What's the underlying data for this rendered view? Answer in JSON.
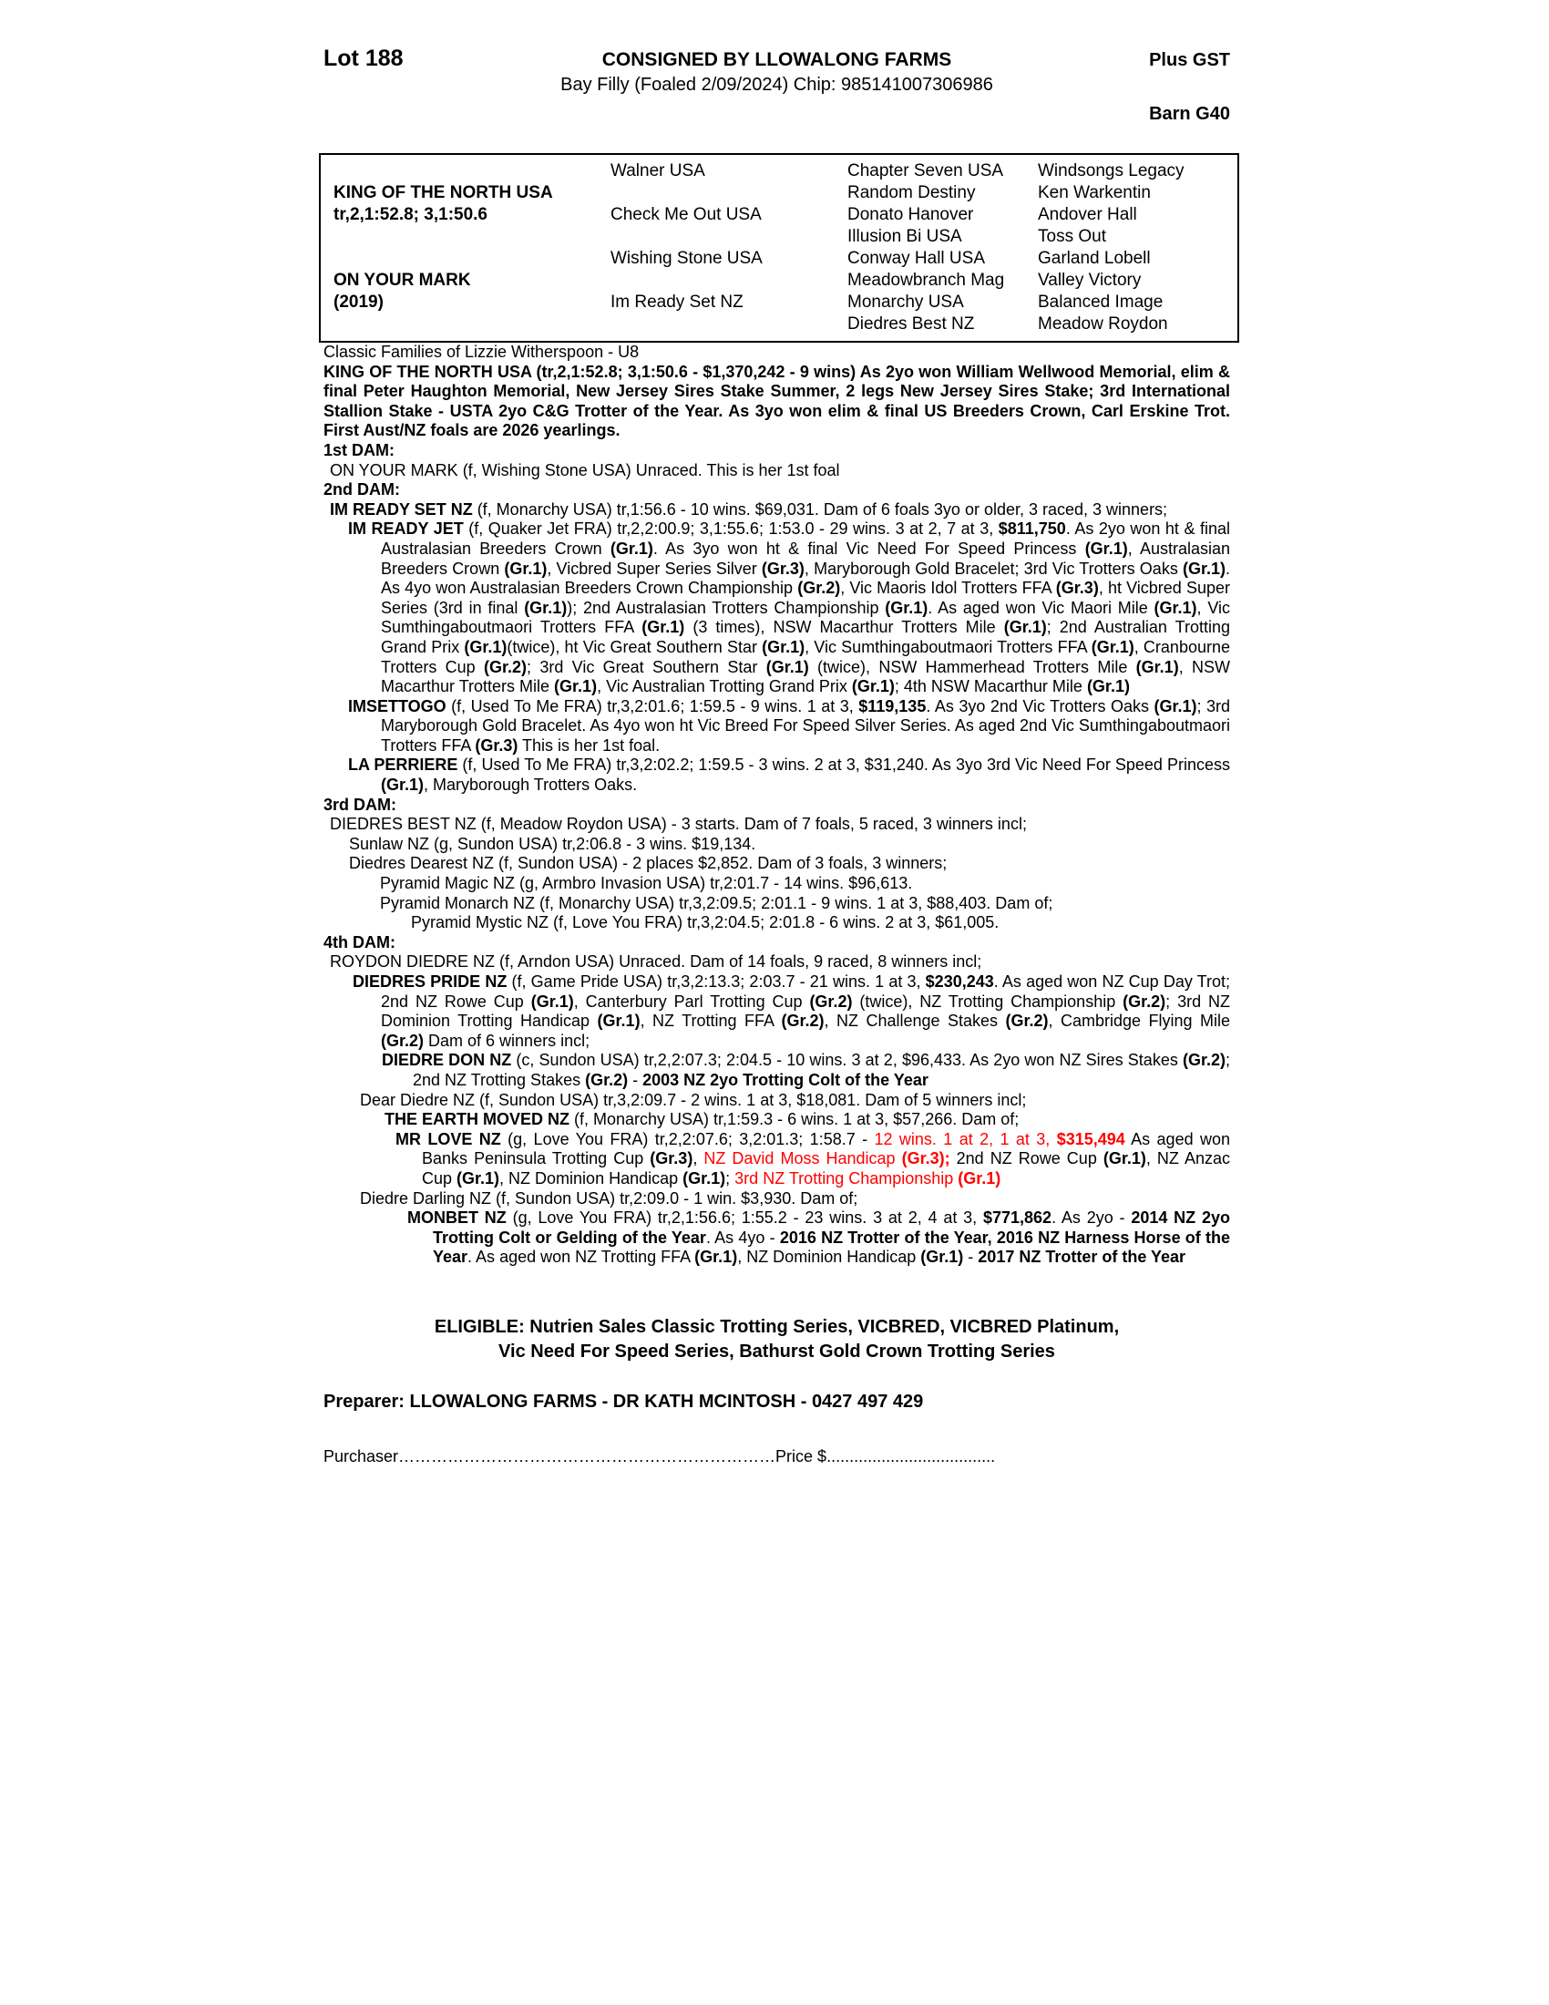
{
  "colors": {
    "red": "#ff0000",
    "black": "#000000"
  },
  "header": {
    "lot": "Lot 188",
    "consigned": "CONSIGNED BY LLOWALONG FARMS",
    "plus_gst": "Plus GST",
    "foal_desc": "Bay Filly (Foaled 2/09/2024) Chip: 985141007306986",
    "barn": "Barn G40"
  },
  "pedigree": {
    "sire": {
      "name": "KING OF THE NORTH USA",
      "record": "tr,2,1:52.8; 3,1:50.6"
    },
    "dam": {
      "name": "ON YOUR MARK",
      "year": "(2019)"
    },
    "gen2": [
      "Walner USA",
      "Check Me Out USA",
      "Wishing Stone USA",
      "Im Ready Set NZ"
    ],
    "gen3": [
      "Chapter Seven USA",
      "Random Destiny",
      "Donato Hanover",
      "Illusion Bi USA",
      "Conway Hall USA",
      "Meadowbranch Mag",
      "Monarchy USA",
      "Diedres Best NZ"
    ],
    "gen4": [
      "Windsongs Legacy",
      "Ken Warkentin",
      "Andover Hall",
      "Toss Out",
      "Garland Lobell",
      "Valley Victory",
      "Balanced Image",
      "Meadow Roydon"
    ]
  },
  "body": [
    {
      "name": "classic-families-line",
      "cls": "mt18",
      "runs": [
        [
          "Classic Families of Lizzie Witherspoon - U8",
          ""
        ]
      ]
    },
    {
      "name": "sire-summary",
      "cls": "mt16 jt",
      "runs": [
        [
          "KING OF THE NORTH USA (tr,2,1:52.8; 3,1:50.6 - $1,370,242 - 9 wins) As 2yo won William Wellwood Memorial, elim & final Peter Haughton Memorial, New Jersey Sires Stake Summer, 2 legs New Jersey Sires Stake; 3rd International Stallion Stake - USTA 2yo C&G Trotter of the Year. As 3yo won elim & final US Breeders Crown, Carl Erskine Trot. First Aust/NZ foals are 2026 yearlings.",
          "b"
        ]
      ]
    },
    {
      "name": "dam1-heading",
      "cls": "sec mt16",
      "runs": [
        [
          "1st DAM:",
          "b"
        ]
      ]
    },
    {
      "name": "dam1-entry",
      "cls": "e0",
      "runs": [
        [
          "ON YOUR MARK (f, Wishing Stone USA) Unraced. This is her 1st foal",
          ""
        ]
      ]
    },
    {
      "name": "dam2-heading",
      "cls": "sec mt10",
      "runs": [
        [
          "2nd DAM:",
          "b"
        ]
      ]
    },
    {
      "name": "dam2-entry",
      "cls": "e0h",
      "runs": [
        [
          "IM READY SET NZ",
          "b"
        ],
        [
          " (f, Monarchy USA) tr,1:56.6 - 10 wins. $69,031. Dam of 6 foals 3yo or older, 3 raced, 3 winners;",
          ""
        ]
      ]
    },
    {
      "name": "progeny-im-ready-jet",
      "cls": "e1 jt",
      "runs": [
        [
          "IM READY JET",
          "b"
        ],
        [
          " (f, Quaker Jet FRA) tr,2,2:00.9; 3,1:55.6; 1:53.0 - 29 wins. 3 at 2, 7 at 3, ",
          ""
        ],
        [
          "$811,750",
          "b"
        ],
        [
          ". As 2yo won ht & final Australasian Breeders Crown ",
          ""
        ],
        [
          "(Gr.1)",
          "b"
        ],
        [
          ". As 3yo won ht & final Vic Need For Speed Princess ",
          ""
        ],
        [
          "(Gr.1)",
          "b"
        ],
        [
          ", Australasian Breeders Crown ",
          ""
        ],
        [
          "(Gr.1)",
          "b"
        ],
        [
          ", Vicbred Super Series Silver ",
          ""
        ],
        [
          "(Gr.3)",
          "b"
        ],
        [
          ", Maryborough Gold Bracelet; 3rd Vic Trotters Oaks ",
          ""
        ],
        [
          "(Gr.1)",
          "b"
        ],
        [
          ". As 4yo won Australasian Breeders Crown Championship ",
          ""
        ],
        [
          "(Gr.2)",
          "b"
        ],
        [
          ", Vic Maoris Idol Trotters FFA ",
          ""
        ],
        [
          "(Gr.3)",
          "b"
        ],
        [
          ", ht Vicbred Super Series (3rd in final ",
          ""
        ],
        [
          "(Gr.1)",
          "b"
        ],
        [
          "); 2nd Australasian Trotters Championship ",
          ""
        ],
        [
          "(Gr.1)",
          "b"
        ],
        [
          ". As aged won Vic Maori Mile ",
          ""
        ],
        [
          "(Gr.1)",
          "b"
        ],
        [
          ", Vic Sumthingaboutmaori Trotters FFA ",
          ""
        ],
        [
          "(Gr.1)",
          "b"
        ],
        [
          " (3 times), NSW Macarthur Trotters Mile ",
          ""
        ],
        [
          "(Gr.1)",
          "b"
        ],
        [
          "; 2nd Australian Trotting Grand Prix ",
          ""
        ],
        [
          "(Gr.1)",
          "b"
        ],
        [
          "(twice), ht Vic Great Southern Star ",
          ""
        ],
        [
          "(Gr.1)",
          "b"
        ],
        [
          ", Vic Sumthingaboutmaori Trotters FFA ",
          ""
        ],
        [
          "(Gr.1)",
          "b"
        ],
        [
          ", Cranbourne Trotters Cup ",
          ""
        ],
        [
          "(Gr.2)",
          "b"
        ],
        [
          "; 3rd Vic Great Southern Star ",
          ""
        ],
        [
          "(Gr.1)",
          "b"
        ],
        [
          " (twice), NSW Hammerhead Trotters Mile ",
          ""
        ],
        [
          "(Gr.1)",
          "b"
        ],
        [
          ", NSW Macarthur Trotters Mile ",
          ""
        ],
        [
          "(Gr.1)",
          "b"
        ],
        [
          ", Vic Australian Trotting Grand Prix ",
          ""
        ],
        [
          "(Gr.1)",
          "b"
        ],
        [
          "; 4th NSW Macarthur Mile ",
          ""
        ],
        [
          "(Gr.1)",
          "b"
        ]
      ]
    },
    {
      "name": "progeny-imsettogo",
      "cls": "e1 jt",
      "runs": [
        [
          "IMSETTOGO",
          "b"
        ],
        [
          " (f, Used To Me FRA) tr,3,2:01.6; 1:59.5 - 9 wins. 1 at 3, ",
          ""
        ],
        [
          "$119,135",
          "b"
        ],
        [
          ". As 3yo 2nd Vic Trotters Oaks ",
          ""
        ],
        [
          "(Gr.1)",
          "b"
        ],
        [
          "; 3rd Maryborough Gold Bracelet. As 4yo won ht Vic Breed For Speed Silver Series. As aged 2nd Vic Sumthingaboutmaori Trotters FFA ",
          ""
        ],
        [
          "(Gr.3)",
          "b"
        ],
        [
          " This is her 1st foal.",
          ""
        ]
      ]
    },
    {
      "name": "progeny-la-perriere",
      "cls": "e1 jt",
      "runs": [
        [
          "LA PERRIERE",
          "b"
        ],
        [
          " (f, Used To Me FRA) tr,3,2:02.2; 1:59.5 - 3 wins. 2 at 3, $31,240. As 3yo 3rd Vic Need For Speed Princess ",
          ""
        ],
        [
          "(Gr.1)",
          "b"
        ],
        [
          ", Maryborough Trotters Oaks.",
          ""
        ]
      ]
    },
    {
      "name": "dam3-heading",
      "cls": "sec mt10",
      "runs": [
        [
          "3rd DAM:",
          "b"
        ]
      ]
    },
    {
      "name": "dam3-entry",
      "cls": "e0",
      "runs": [
        [
          "DIEDRES BEST NZ (f, Meadow Roydon USA) - 3 starts. Dam of 7 foals, 5 raced, 3 winners incl;",
          ""
        ]
      ]
    },
    {
      "name": "progeny-sunlaw",
      "cls": "l28",
      "runs": [
        [
          "Sunlaw NZ (g, Sundon USA) tr,2:06.8 - 3 wins. $19,134.",
          ""
        ]
      ]
    },
    {
      "name": "progeny-diedres-dearest",
      "cls": "l28",
      "runs": [
        [
          "Diedres Dearest NZ (f, Sundon USA) - 2 places $2,852. Dam of 3 foals, 3 winners;",
          ""
        ]
      ]
    },
    {
      "name": "progeny-pyramid-magic",
      "cls": "l62",
      "runs": [
        [
          "Pyramid Magic NZ (g, Armbro Invasion USA) tr,2:01.7 - 14 wins. $96,613.",
          ""
        ]
      ]
    },
    {
      "name": "progeny-pyramid-monarch",
      "cls": "l62",
      "runs": [
        [
          "Pyramid Monarch NZ (f, Monarchy USA) tr,3,2:09.5; 2:01.1 - 9 wins. 1 at 3, $88,403. Dam of;",
          ""
        ]
      ]
    },
    {
      "name": "progeny-pyramid-mystic",
      "cls": "l96",
      "runs": [
        [
          "Pyramid Mystic NZ (f, Love You FRA) tr,3,2:04.5; 2:01.8 - 6 wins. 2 at 3, $61,005.",
          ""
        ]
      ]
    },
    {
      "name": "dam4-heading",
      "cls": "sec mt10",
      "runs": [
        [
          "4th DAM:",
          "b"
        ]
      ]
    },
    {
      "name": "dam4-entry",
      "cls": "e0",
      "runs": [
        [
          "ROYDON DIEDRE NZ (f, Arndon USA) Unraced. Dam of 14 foals, 9 raced, 8 winners incl;",
          ""
        ]
      ]
    },
    {
      "name": "progeny-diedres-pride",
      "cls": "e1b jt",
      "runs": [
        [
          "DIEDRES PRIDE NZ",
          "b"
        ],
        [
          " (f, Game Pride USA) tr,3,2:13.3; 2:03.7 - 21 wins. 1 at 3, ",
          ""
        ],
        [
          "$230,243",
          "b"
        ],
        [
          ". As aged won NZ Cup Day Trot; 2nd NZ Rowe Cup ",
          ""
        ],
        [
          "(Gr.1)",
          "b"
        ],
        [
          ", Canterbury Parl Trotting Cup ",
          ""
        ],
        [
          "(Gr.2)",
          "b"
        ],
        [
          " (twice), NZ Trotting Championship ",
          ""
        ],
        [
          "(Gr.2)",
          "b"
        ],
        [
          "; 3rd NZ Dominion Trotting Handicap ",
          ""
        ],
        [
          "(Gr.1)",
          "b"
        ],
        [
          ", NZ Trotting FFA ",
          ""
        ],
        [
          "(Gr.2)",
          "b"
        ],
        [
          ", NZ Challenge Stakes ",
          ""
        ],
        [
          "(Gr.2)",
          "b"
        ],
        [
          ", Cambridge Flying Mile ",
          ""
        ],
        [
          "(Gr.2)",
          "b"
        ],
        [
          " Dam of 6 winners incl;",
          ""
        ]
      ]
    },
    {
      "name": "progeny-diedre-don",
      "cls": "e2 jt",
      "runs": [
        [
          "DIEDRE DON NZ",
          "b"
        ],
        [
          " (c, Sundon USA) tr,2,2:07.3; 2:04.5 - 10 wins. 3 at 2, $96,433. As 2yo won NZ Sires Stakes ",
          ""
        ],
        [
          "(Gr.2)",
          "b"
        ],
        [
          "; 2nd NZ Trotting Stakes ",
          ""
        ],
        [
          "(Gr.2)",
          "b"
        ],
        [
          " - ",
          ""
        ],
        [
          "2003 NZ 2yo Trotting Colt of the Year",
          "b"
        ]
      ]
    },
    {
      "name": "progeny-dear-diedre",
      "cls": "l40",
      "runs": [
        [
          "Dear Diedre NZ (f, Sundon USA) tr,3,2:09.7 - 2 wins. 1 at 3, $18,081. Dam of 5 winners incl;",
          ""
        ]
      ]
    },
    {
      "name": "progeny-the-earth-moved",
      "cls": "l67",
      "runs": [
        [
          "THE EARTH MOVED NZ",
          "b"
        ],
        [
          " (f, Monarchy USA) tr,1:59.3 - 6 wins. 1 at 3, $57,266. Dam of;",
          ""
        ]
      ]
    },
    {
      "name": "progeny-mr-love",
      "cls": "e3a jt",
      "runs": [
        [
          "MR LOVE NZ",
          "b"
        ],
        [
          " (g, Love You FRA) tr,2,2:07.6; 3,2:01.3; 1:58.7 - ",
          ""
        ],
        [
          "12 wins. 1 at 2, 1 at 3, ",
          "r"
        ],
        [
          "$315,494",
          "br"
        ],
        [
          " As aged won Banks Peninsula Trotting Cup ",
          ""
        ],
        [
          "(Gr.3)",
          "b"
        ],
        [
          ", ",
          ""
        ],
        [
          "NZ David Moss Handicap ",
          "r"
        ],
        [
          "(Gr.3);",
          "br"
        ],
        [
          " 2nd NZ Rowe Cup ",
          ""
        ],
        [
          "(Gr.1)",
          "b"
        ],
        [
          ", NZ Anzac Cup ",
          ""
        ],
        [
          "(Gr.1)",
          "b"
        ],
        [
          ", NZ Dominion Handicap ",
          ""
        ],
        [
          "(Gr.1)",
          "b"
        ],
        [
          "; ",
          ""
        ],
        [
          "3rd NZ Trotting Championship ",
          "r"
        ],
        [
          "(Gr.1)",
          "br"
        ]
      ]
    },
    {
      "name": "progeny-diedre-darling",
      "cls": "l40",
      "runs": [
        [
          "Diedre Darling NZ (f, Sundon USA) tr,2:09.0 - 1 win. $3,930. Dam of;",
          ""
        ]
      ]
    },
    {
      "name": "progeny-monbet",
      "cls": "e3b jt",
      "runs": [
        [
          "MONBET NZ",
          "b"
        ],
        [
          " (g, Love You FRA) tr,2,1:56.6; 1:55.2 - 23 wins. 3 at 2, 4 at 3, ",
          ""
        ],
        [
          "$771,862",
          "b"
        ],
        [
          ". As 2yo - ",
          ""
        ],
        [
          "2014 NZ 2yo Trotting Colt or Gelding of the Year",
          "b"
        ],
        [
          ". As 4yo - ",
          ""
        ],
        [
          "2016 NZ Trotter of the Year, 2016 NZ Harness Horse of the Year",
          "b"
        ],
        [
          ". As aged won NZ Trotting FFA ",
          ""
        ],
        [
          "(Gr.1)",
          "b"
        ],
        [
          ", NZ Dominion Handicap ",
          ""
        ],
        [
          "(Gr.1)",
          "b"
        ],
        [
          " - ",
          ""
        ],
        [
          "2017 NZ Trotter of the Year",
          "b"
        ]
      ]
    }
  ],
  "footer": {
    "eligible_line1": "ELIGIBLE: Nutrien Sales Classic Trotting Series, VICBRED, VICBRED Platinum,",
    "eligible_line2": "Vic Need For Speed Series, Bathurst Gold Crown Trotting Series",
    "preparer": "Preparer: LLOWALONG FARMS - DR KATH MCINTOSH - 0427 497 429",
    "purchaser_label": "Purchaser",
    "purchaser_dots": "……………………………………………………………",
    "price_label": "Price $",
    "price_dots": "....................................."
  }
}
